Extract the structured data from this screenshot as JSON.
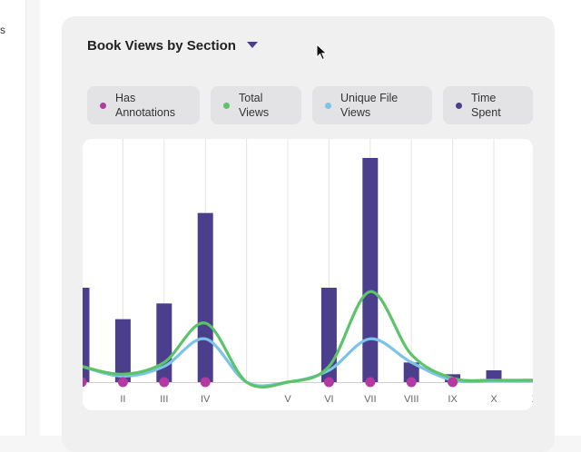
{
  "left_panel": {
    "fragment": "s"
  },
  "header": {
    "title": "Book Views by Section",
    "dropdown_icon": "caret-down-icon"
  },
  "legend": [
    {
      "label": "Has\nAnnotations",
      "color": "#b23aa0"
    },
    {
      "label": "Total\nViews",
      "color": "#5cc368"
    },
    {
      "label": "Unique File\nViews",
      "color": "#7cc3ea"
    },
    {
      "label": "Time\nSpent",
      "color": "#4b3f8d"
    }
  ],
  "chart_data": {
    "type": "bar",
    "categories": [
      "",
      "II",
      "III",
      "IV",
      "",
      "V",
      "VI",
      "VII",
      "VIII",
      "IX",
      "X",
      "X"
    ],
    "series": [
      {
        "name": "Time Spent",
        "kind": "bar",
        "color": "#4b3f8d",
        "values": [
          24,
          16,
          20,
          43,
          0,
          0,
          24,
          57,
          5,
          2,
          3,
          0
        ]
      },
      {
        "name": "Total Views",
        "kind": "line",
        "color": "#5cc368",
        "values": [
          4,
          2,
          5,
          15,
          0,
          0,
          4,
          23,
          7,
          1,
          0.5,
          0.5
        ]
      },
      {
        "name": "Unique File Views",
        "kind": "line",
        "color": "#7cc3ea",
        "values": [
          4,
          1.5,
          4,
          11,
          0,
          0,
          3,
          11,
          5,
          0.5,
          0.3,
          0.3
        ]
      },
      {
        "name": "Has Annotations",
        "kind": "dot",
        "color": "#b23aa0",
        "values": [
          1,
          1,
          1,
          1,
          0,
          0,
          1,
          1,
          1,
          1,
          0,
          0
        ]
      }
    ],
    "ylim": [
      0,
      60
    ],
    "grid": true
  }
}
